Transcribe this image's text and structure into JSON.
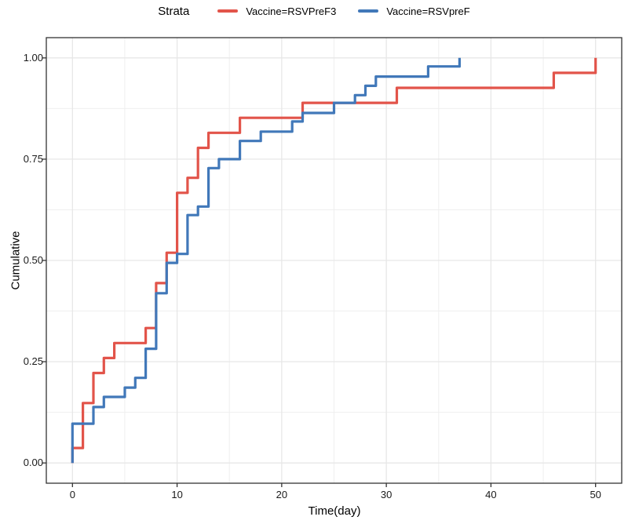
{
  "legend": {
    "title": "Strata",
    "items": [
      {
        "label": "Vaccine=RSVPreF3",
        "color": "#E2544A"
      },
      {
        "label": "Vaccine=RSVpreF",
        "color": "#4178B9"
      }
    ]
  },
  "chart_data": {
    "type": "line",
    "subtype": "step-cumulative-incidence",
    "title": "",
    "xlabel": "Time(day)",
    "ylabel": "Cumulative",
    "xlim": [
      -2.5,
      52.5
    ],
    "ylim": [
      -0.05,
      1.05
    ],
    "x_ticks": [
      0,
      10,
      20,
      30,
      40,
      50
    ],
    "x_tick_labels": [
      "0",
      "10",
      "20",
      "30",
      "40",
      "50"
    ],
    "x_minor_ticks": [
      5,
      15,
      25,
      35,
      45
    ],
    "y_ticks": [
      0,
      0.25,
      0.5,
      0.75,
      1
    ],
    "y_tick_labels": [
      "0.00",
      "0.25",
      "0.50",
      "0.75",
      "1.00"
    ],
    "y_minor_ticks": [
      0.125,
      0.375,
      0.625,
      0.875
    ],
    "grid": true,
    "legend_position": "top",
    "series": [
      {
        "name": "Vaccine=RSVPreF3",
        "color": "#E2544A",
        "points": [
          [
            0,
            0
          ],
          [
            0,
            0.037
          ],
          [
            1,
            0.148
          ],
          [
            2,
            0.222
          ],
          [
            3,
            0.259
          ],
          [
            4,
            0.296
          ],
          [
            7,
            0.333
          ],
          [
            8,
            0.444
          ],
          [
            9,
            0.519
          ],
          [
            10,
            0.667
          ],
          [
            11,
            0.704
          ],
          [
            12,
            0.778
          ],
          [
            13,
            0.815
          ],
          [
            16,
            0.852
          ],
          [
            22,
            0.889
          ],
          [
            31,
            0.926
          ],
          [
            46,
            0.963
          ],
          [
            50,
            1.0
          ]
        ]
      },
      {
        "name": "Vaccine=RSVpreF",
        "color": "#4178B9",
        "points": [
          [
            0,
            0
          ],
          [
            0,
            0.097
          ],
          [
            2,
            0.138
          ],
          [
            3,
            0.163
          ],
          [
            5,
            0.186
          ],
          [
            6,
            0.21
          ],
          [
            7,
            0.282
          ],
          [
            8,
            0.419
          ],
          [
            9,
            0.494
          ],
          [
            10,
            0.516
          ],
          [
            11,
            0.612
          ],
          [
            12,
            0.633
          ],
          [
            13,
            0.728
          ],
          [
            14,
            0.75
          ],
          [
            16,
            0.795
          ],
          [
            18,
            0.818
          ],
          [
            21,
            0.843
          ],
          [
            22,
            0.864
          ],
          [
            25,
            0.889
          ],
          [
            27,
            0.908
          ],
          [
            28,
            0.931
          ],
          [
            29,
            0.954
          ],
          [
            34,
            0.979
          ],
          [
            37,
            1.0
          ]
        ]
      }
    ]
  }
}
